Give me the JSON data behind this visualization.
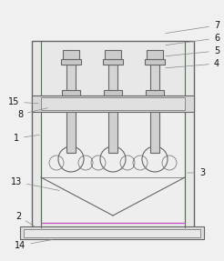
{
  "bg_color": "#f0f0f0",
  "line_color": "#666666",
  "green_color": "#00aa00",
  "pink_color": "#cc44cc",
  "lw": 0.8,
  "lw_thin": 0.5,
  "lw_thick": 1.0,
  "figsize": [
    2.46,
    2.87
  ],
  "dpi": 100
}
